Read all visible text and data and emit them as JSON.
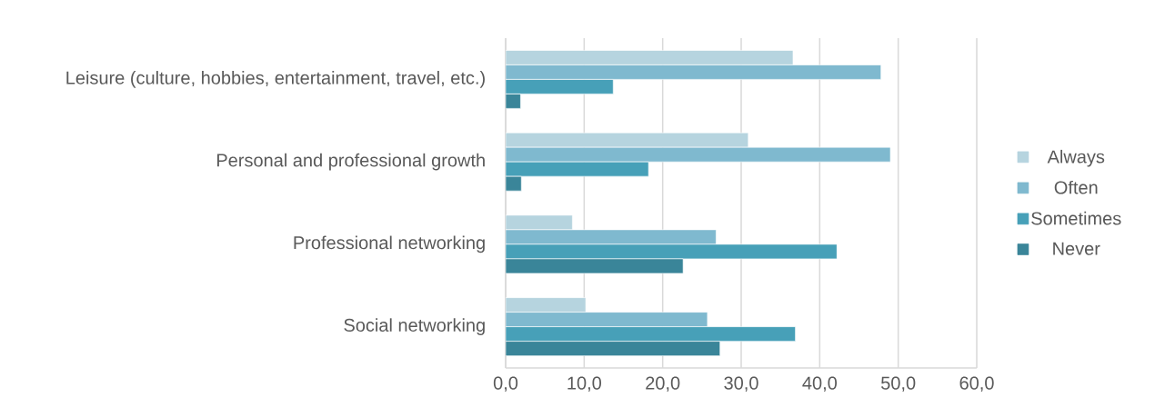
{
  "chart_data": {
    "type": "bar",
    "orientation": "horizontal",
    "categories": [
      "Leisure (culture, hobbies, entertainment, travel, etc.)",
      "Personal and professional growth",
      "Professional networking",
      "Social networking"
    ],
    "series": [
      {
        "name": "Always",
        "color": "#b6d4df",
        "values": [
          36.6,
          30.9,
          8.5,
          10.2
        ]
      },
      {
        "name": "Often",
        "color": "#7fb9cf",
        "values": [
          47.8,
          49.0,
          26.8,
          25.7
        ]
      },
      {
        "name": "Sometimes",
        "color": "#47a0b8",
        "values": [
          13.7,
          18.2,
          42.2,
          36.9
        ]
      },
      {
        "name": "Never",
        "color": "#3a8599",
        "values": [
          1.9,
          2.0,
          22.6,
          27.3
        ]
      }
    ],
    "xlim": [
      0,
      60
    ],
    "xticks": [
      {
        "value": 0,
        "label": "0,0"
      },
      {
        "value": 10,
        "label": "10,0"
      },
      {
        "value": 20,
        "label": "20,0"
      },
      {
        "value": 30,
        "label": "30,0"
      },
      {
        "value": 40,
        "label": "40,0"
      },
      {
        "value": 50,
        "label": "50,0"
      },
      {
        "value": 60,
        "label": "60,0"
      }
    ],
    "grid": "x",
    "legend": "right"
  }
}
